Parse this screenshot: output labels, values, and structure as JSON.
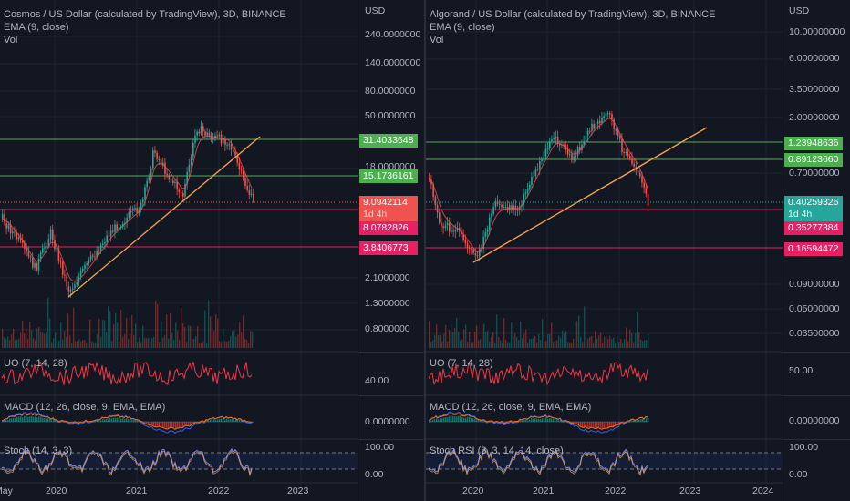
{
  "left": {
    "title": "Cosmos / US Dollar (calculated by TradingView), 3D, BINANCE",
    "ema": "EMA (9, close)",
    "vol": "Vol",
    "currency": "USD",
    "axis_ticks": [
      "240.0000000",
      "140.0000000",
      "80.0000000",
      "50.0000000",
      "18.0000000",
      "2.1000000",
      "1.3000000",
      "0.8000000"
    ],
    "levels": {
      "green1": "31.4033648",
      "green2": "15.1736161",
      "price": "9.0942114",
      "countdown": "1d 4h",
      "red1": "8.0782826",
      "red2": "3.8406773"
    },
    "uo_label": "UO (7, 14, 28)",
    "uo_tick": "40.00",
    "macd_label": "MACD (12, 26, close, 9, EMA, EMA)",
    "macd_tick": "0.0000000",
    "stoch_label": "Stoch (14, 3, 3)",
    "stoch_ticks": [
      "100.00",
      "0.00"
    ],
    "time_labels": [
      "May",
      "2020",
      "2021",
      "2022",
      "2023"
    ]
  },
  "right": {
    "title": "Algorand / US Dollar (calculated by TradingView), 3D, BINANCE",
    "ema": "EMA (9, close)",
    "vol": "Vol",
    "currency": "USD",
    "axis_ticks": [
      "10.00000000",
      "6.00000000",
      "3.50000000",
      "2.00000000",
      "0.70000000",
      "0.09000000",
      "0.05000000",
      "0.03500000"
    ],
    "levels": {
      "green1": "1.23948636",
      "green2": "0.89123660",
      "price": "0.40259326",
      "countdown": "1d 4h",
      "red1": "0.35277384",
      "red2": "0.16594472"
    },
    "uo_label": "UO (7, 14, 28)",
    "uo_tick": "50.00",
    "macd_label": "MACD (12, 26, close, 9, EMA, EMA)",
    "macd_tick": "0.00000000",
    "stoch_label": "Stoch RSI (3, 3, 14, 14, close)",
    "stoch_ticks": [
      "100.00",
      "0.00"
    ],
    "time_labels": [
      "2020",
      "2021",
      "2022",
      "2023",
      "2024"
    ]
  },
  "colors": {
    "bg": "#131722",
    "up": "#26a69a",
    "down": "#ef5350",
    "green_line": "#4caf50",
    "red_line": "#e91e63",
    "trend": "#f7a64a",
    "uo": "#f23645",
    "macd": "#2962ff",
    "signal": "#ff6d00",
    "stoch_k": "#7e8ce0",
    "stoch_d": "#f7a64a",
    "badge_green": "#4caf50",
    "badge_red": "#e91e63",
    "badge_price": "#ef5350",
    "badge_price_right": "#26a69a"
  }
}
